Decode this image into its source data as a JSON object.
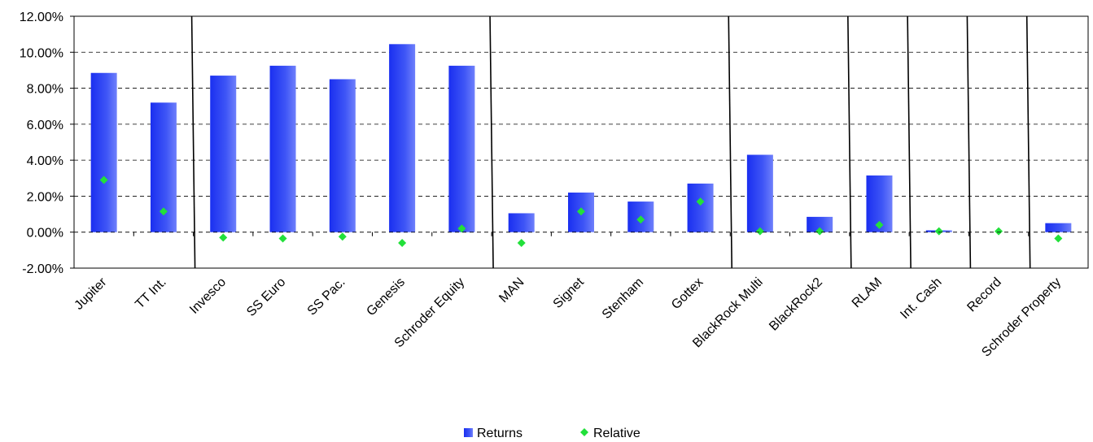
{
  "chart_data": {
    "type": "bar",
    "categories": [
      "Jupiter",
      "TT Int.",
      "Invesco",
      "SS Euro",
      "SS Pac.",
      "Genesis",
      "Schroder Equity",
      "MAN",
      "Signet",
      "Stenham",
      "Gottex",
      "BlackRock Multi",
      "BlackRock2",
      "RLAM",
      "Int. Cash",
      "Record",
      "Schroder Property"
    ],
    "series": [
      {
        "name": "Returns",
        "kind": "bar",
        "color": "#2a3cf0",
        "values": [
          8.85,
          7.2,
          8.7,
          9.25,
          8.5,
          10.45,
          9.25,
          1.05,
          2.2,
          1.7,
          2.7,
          4.3,
          0.85,
          3.15,
          0.1,
          0.0,
          0.5
        ]
      },
      {
        "name": "Relative",
        "kind": "marker",
        "color": "#22e03a",
        "values": [
          2.9,
          1.15,
          -0.3,
          -0.35,
          -0.25,
          -0.6,
          0.2,
          -0.6,
          1.15,
          0.7,
          1.7,
          0.05,
          0.05,
          0.4,
          0.05,
          0.05,
          -0.35
        ]
      }
    ],
    "yticks": [
      "12.00%",
      "10.00%",
      "8.00%",
      "6.00%",
      "4.00%",
      "2.00%",
      "0.00%",
      "-2.00%"
    ],
    "ylim": [
      -2,
      12
    ],
    "group_separators_after": [
      "TT Int.",
      "Schroder Equity",
      "Gottex",
      "BlackRock2",
      "RLAM",
      "Int. Cash",
      "Record"
    ],
    "grid": "dashed horizontal",
    "legend_position": "bottom-center"
  }
}
